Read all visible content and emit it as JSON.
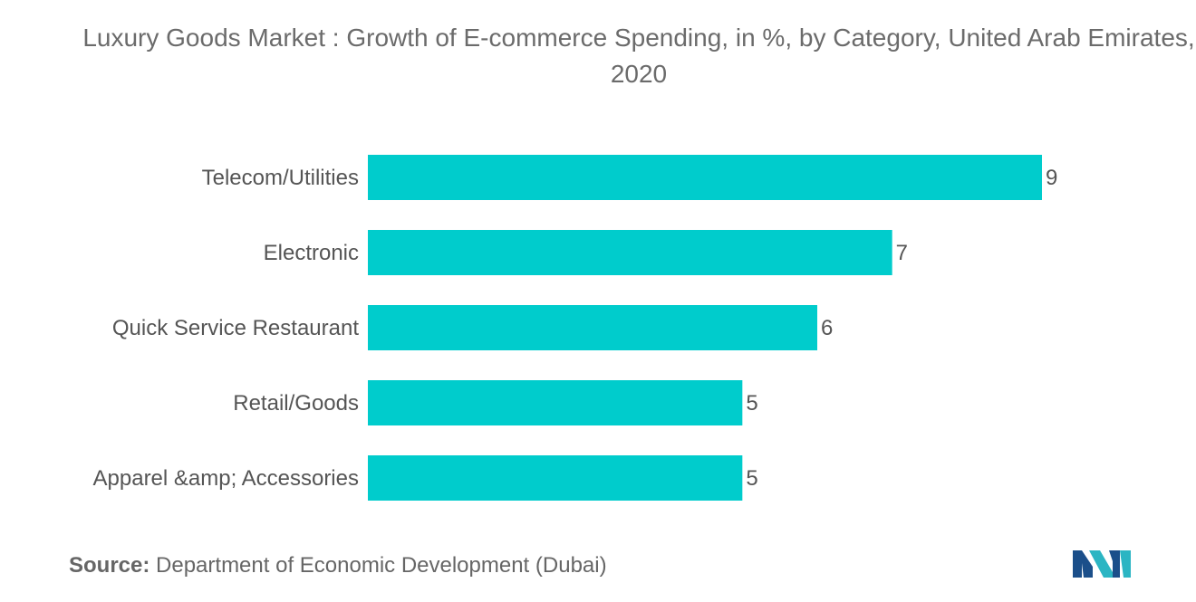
{
  "chart_data": {
    "type": "bar",
    "orientation": "horizontal",
    "title": "Luxury Goods Market : Growth of E-commerce Spending, in %, by Category, United Arab Emirates, 2020",
    "categories": [
      "Telecom/Utilities",
      "Electronic",
      "Quick Service Restaurant",
      "Retail/Goods",
      "Apparel &amp; Accessories"
    ],
    "values": [
      9,
      7,
      6,
      5,
      5
    ],
    "xlim": [
      0,
      9
    ],
    "bar_color": "#00cccc",
    "grid": false,
    "legend": "none",
    "data_labels": true
  },
  "source": {
    "label": "Source:",
    "text": "Department of Economic Development (Dubai)"
  },
  "logo": {
    "icon": "mordor-intelligence-logo-icon",
    "colors": [
      "#1b4f8a",
      "#2bb5c3"
    ]
  }
}
